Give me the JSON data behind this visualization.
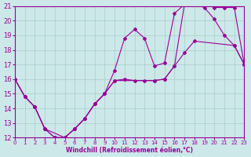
{
  "xlabel": "Windchill (Refroidissement éolien,°C)",
  "bg_color": "#cce8e8",
  "line_color": "#990099",
  "grid_color": "#aacccc",
  "xlim": [
    0,
    23
  ],
  "ylim": [
    12,
    21
  ],
  "xticks": [
    0,
    1,
    2,
    3,
    4,
    5,
    6,
    7,
    8,
    9,
    10,
    11,
    12,
    13,
    14,
    15,
    16,
    17,
    18,
    19,
    20,
    21,
    22,
    23
  ],
  "yticks": [
    12,
    13,
    14,
    15,
    16,
    17,
    18,
    19,
    20,
    21
  ],
  "curve1_x": [
    0,
    1,
    2,
    3,
    4,
    5,
    6,
    7,
    8,
    9,
    10,
    11,
    12,
    13,
    14,
    15,
    16,
    17,
    18,
    19,
    20,
    21,
    22,
    23
  ],
  "curve1_y": [
    16,
    14.8,
    14.1,
    12.6,
    12.0,
    12.0,
    12.6,
    13.3,
    14.3,
    15.0,
    15.9,
    16.0,
    15.9,
    15.9,
    15.9,
    16.0,
    16.9,
    21.1,
    21.1,
    21.1,
    20.9,
    20.9,
    20.9,
    17.0
  ],
  "curve2_x": [
    0,
    1,
    2,
    3,
    4,
    5,
    6,
    7,
    8,
    9,
    10,
    11,
    12,
    13,
    14,
    15,
    16,
    17,
    18,
    19,
    20,
    21,
    22,
    23
  ],
  "curve2_y": [
    16,
    14.8,
    14.1,
    12.6,
    12.0,
    12.0,
    12.6,
    13.3,
    14.3,
    15.0,
    16.6,
    18.8,
    19.4,
    18.8,
    16.9,
    17.1,
    20.5,
    21.1,
    21.1,
    20.9,
    20.1,
    19.0,
    18.3,
    17.0
  ],
  "curve3_x": [
    0,
    1,
    2,
    3,
    5,
    6,
    7,
    8,
    9,
    10,
    14,
    15,
    16,
    17,
    18,
    22,
    23
  ],
  "curve3_y": [
    16,
    14.8,
    14.1,
    12.6,
    12.0,
    12.6,
    13.3,
    14.3,
    15.0,
    15.9,
    15.9,
    16.0,
    16.9,
    17.8,
    18.6,
    18.3,
    17.0
  ]
}
